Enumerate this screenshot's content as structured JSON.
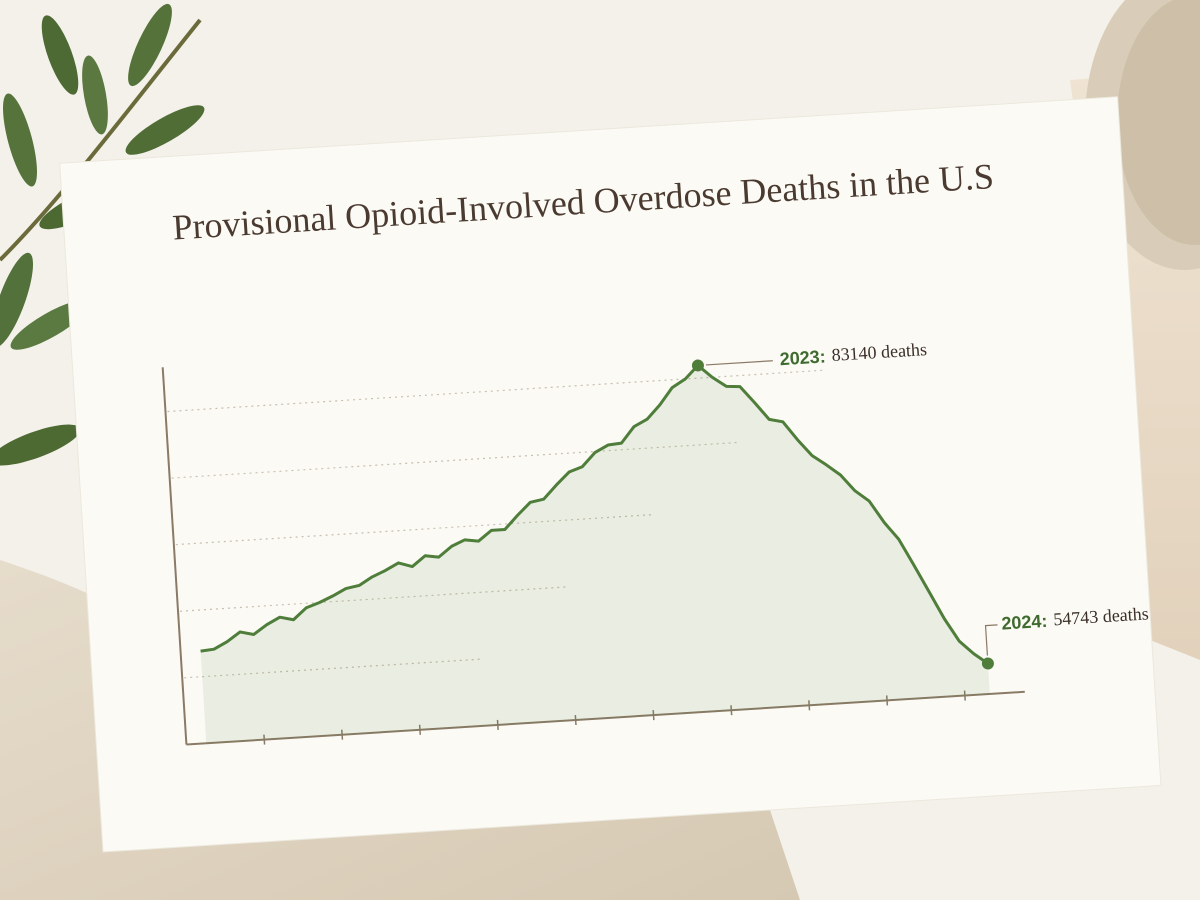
{
  "chart_data": {
    "type": "line",
    "title": "Provisional Opioid-Involved Overdose Deaths in the U.S",
    "categories": [
      null,
      null,
      null,
      null,
      null,
      null,
      null,
      null,
      null,
      null,
      null,
      null,
      null,
      null,
      null,
      null,
      null,
      null,
      null,
      null,
      null,
      null,
      null,
      null,
      null,
      null,
      null,
      null,
      null,
      null,
      null,
      null,
      null,
      null,
      null,
      null,
      null,
      null,
      "2023:",
      null,
      null,
      null,
      null,
      null,
      null,
      null,
      null,
      null,
      null,
      null,
      null,
      null,
      null,
      null,
      null,
      null,
      null,
      null,
      "2024:"
    ],
    "values": [
      60300,
      60400,
      61000,
      61800,
      61500,
      62300,
      62900,
      62600,
      63600,
      64000,
      64500,
      65100,
      65300,
      66000,
      66500,
      67100,
      66700,
      67600,
      67400,
      68300,
      68800,
      68600,
      69500,
      69500,
      70700,
      71800,
      72000,
      73200,
      74300,
      74700,
      75900,
      76500,
      76600,
      78000,
      78600,
      79800,
      81300,
      82000,
      83140,
      82000,
      81100,
      81000,
      79500,
      77900,
      77600,
      75900,
      74400,
      73500,
      72500,
      71000,
      70000,
      68000,
      66400,
      64000,
      61500,
      59000,
      56900,
      55700,
      54743
    ],
    "value_labels": [
      null,
      null,
      null,
      null,
      null,
      null,
      null,
      null,
      null,
      null,
      null,
      null,
      null,
      null,
      null,
      null,
      null,
      null,
      null,
      null,
      null,
      null,
      null,
      null,
      null,
      null,
      null,
      null,
      null,
      null,
      null,
      null,
      null,
      null,
      null,
      null,
      null,
      null,
      "83140 deaths",
      null,
      null,
      null,
      null,
      null,
      null,
      null,
      null,
      null,
      null,
      null,
      null,
      null,
      null,
      null,
      null,
      null,
      null,
      null,
      "54743 deaths"
    ],
    "color": "#4f7d3a",
    "ylim": [
      52000,
      86000
    ],
    "yticks": [
      58000,
      64000,
      70000,
      76000,
      82000
    ],
    "grid": true
  }
}
